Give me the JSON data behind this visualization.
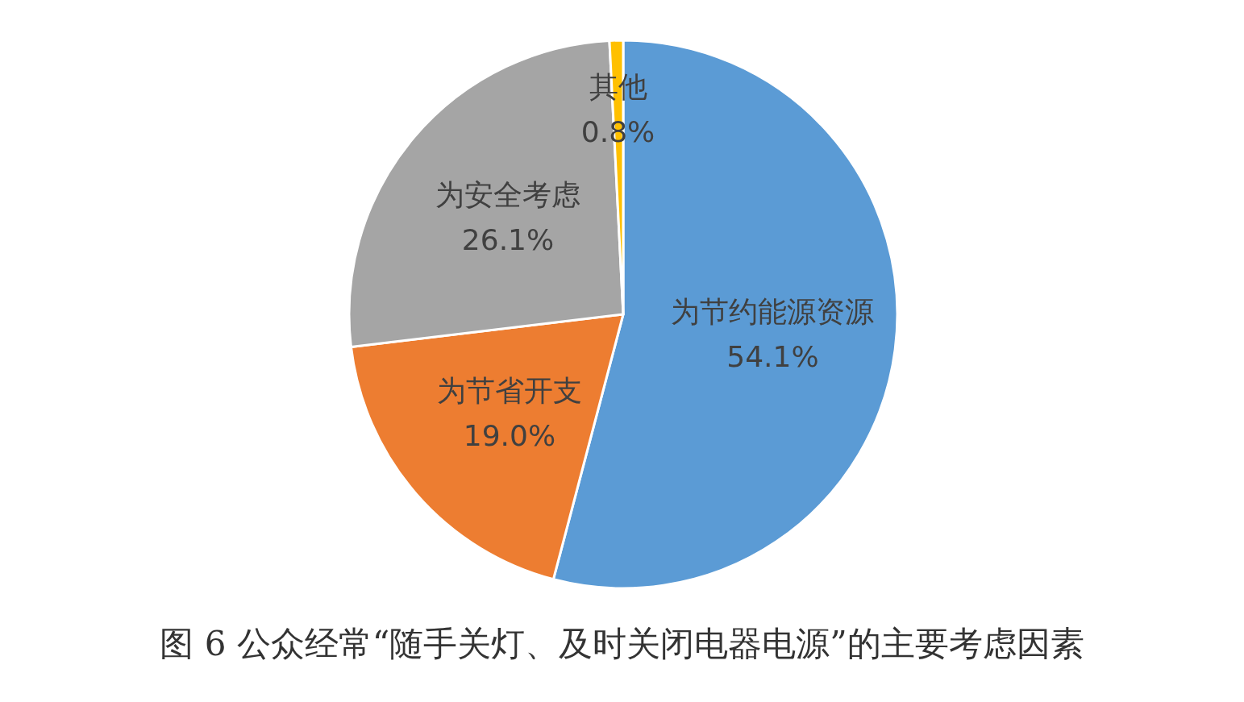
{
  "chart_data": {
    "type": "pie",
    "title": "图 6 公众经常“随手关灯、及时关闭电器电源”的主要考虑因素",
    "categories": [
      "为节约能源资源",
      "为节省开支",
      "为安全考虑",
      "其他"
    ],
    "values": [
      54.1,
      19.0,
      26.1,
      0.8
    ],
    "colors": [
      "#5b9bd5",
      "#ed7d31",
      "#a5a5a5",
      "#ffc000"
    ],
    "value_labels": [
      "54.1%",
      "19.0%",
      "26.1%",
      "0.8%"
    ]
  }
}
